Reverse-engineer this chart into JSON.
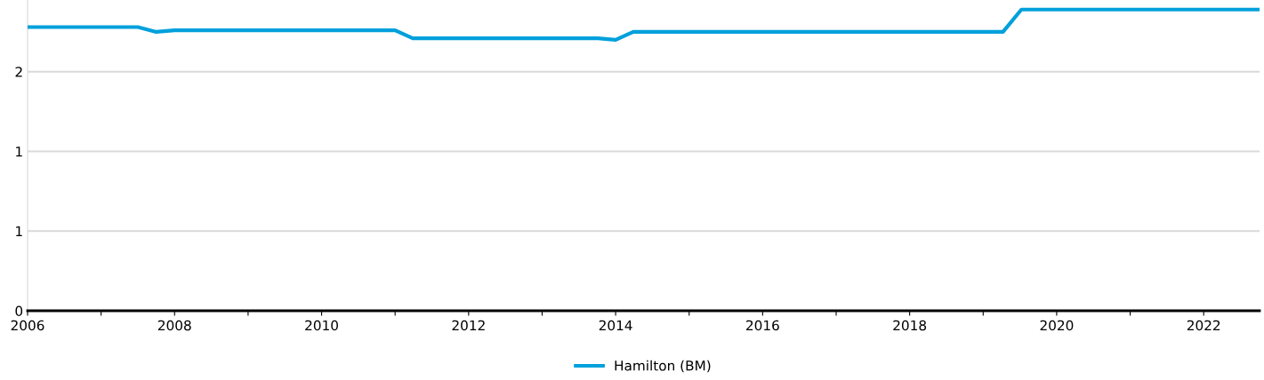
{
  "chart_data": {
    "type": "line",
    "x": [
      2006.0,
      2007.5,
      2007.75,
      2008.0,
      2011.0,
      2011.24,
      2013.76,
      2014.0,
      2014.24,
      2019.27,
      2019.52,
      2022.76
    ],
    "series": [
      {
        "name": "Hamilton (BM)",
        "color": "#00a0dc",
        "values": [
          1.78,
          1.78,
          1.75,
          1.76,
          1.76,
          1.71,
          1.71,
          1.7,
          1.75,
          1.75,
          1.89,
          1.89
        ]
      }
    ],
    "xlim": [
      2006,
      2022.76
    ],
    "xticks": [
      2006,
      {
        "value": 2007,
        "label": null
      },
      2008,
      {
        "value": 2009,
        "label": null
      },
      2010,
      {
        "value": 2011,
        "label": null
      },
      2012,
      {
        "value": 2013,
        "label": null
      },
      2014,
      {
        "value": 2015,
        "label": null
      },
      2016,
      {
        "value": 2017,
        "label": null
      },
      2018,
      {
        "value": 2019,
        "label": null
      },
      2020,
      {
        "value": 2021,
        "label": null
      },
      2022
    ],
    "ylim": [
      0,
      1.95
    ],
    "yticks": [
      0,
      {
        "value": 0.5,
        "label": "1"
      },
      1,
      {
        "value": 1.5,
        "label": "2"
      }
    ],
    "grid": "y",
    "legend": "bottom",
    "marker": "none",
    "line_style": "solid"
  }
}
